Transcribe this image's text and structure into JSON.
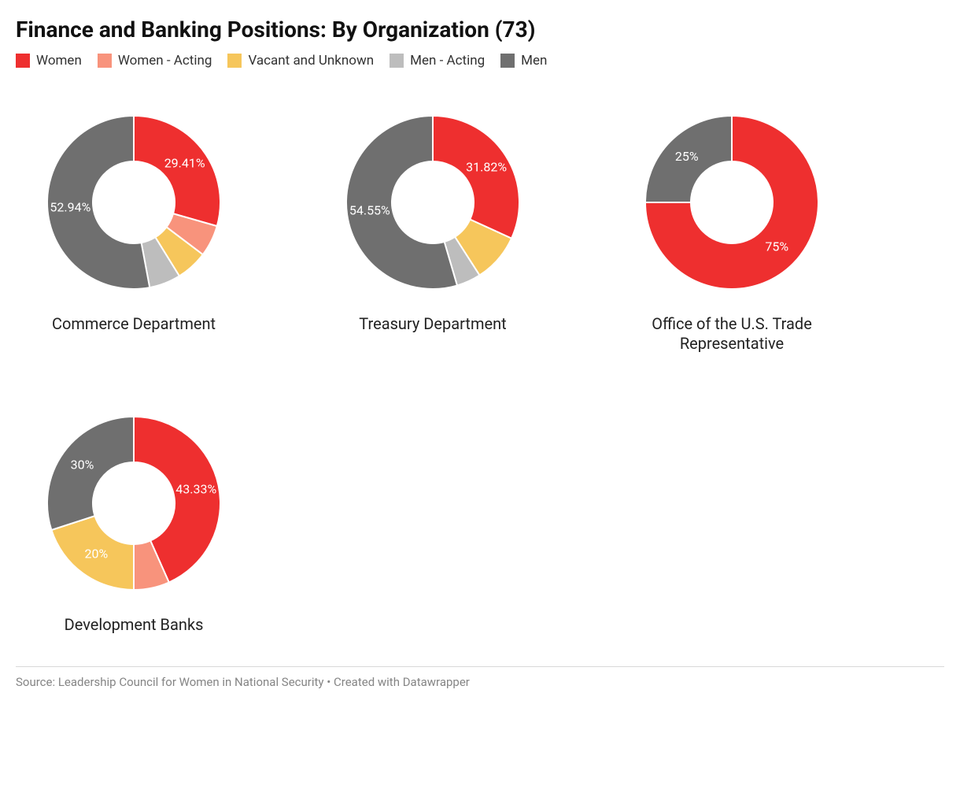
{
  "title": "Finance and Banking Positions: By Organization (73)",
  "legend": [
    {
      "label": "Women",
      "color": "#ee2f2f"
    },
    {
      "label": "Women - Acting",
      "color": "#f8937c"
    },
    {
      "label": "Vacant and Unknown",
      "color": "#f6c65b"
    },
    {
      "label": "Men - Acting",
      "color": "#bdbdbd"
    },
    {
      "label": "Men",
      "color": "#6f6f6f"
    }
  ],
  "donut": {
    "outer_radius": 110,
    "inner_radius": 52,
    "svg_size": 260,
    "label_font_size": 16,
    "title_font_size": 20
  },
  "charts": [
    {
      "title": "Commerce Department",
      "slices": [
        {
          "category": "Women",
          "value": 29.41,
          "color": "#ee2f2f",
          "label": "29.41%",
          "label_color": "#ffffff",
          "show_label": true
        },
        {
          "category": "Women - Acting",
          "value": 5.88,
          "color": "#f8937c",
          "label": "",
          "label_color": "#ffffff",
          "show_label": false
        },
        {
          "category": "Vacant and Unknown",
          "value": 5.88,
          "color": "#f6c65b",
          "label": "",
          "label_color": "#ffffff",
          "show_label": false
        },
        {
          "category": "Men - Acting",
          "value": 5.88,
          "color": "#bdbdbd",
          "label": "",
          "label_color": "#ffffff",
          "show_label": false
        },
        {
          "category": "Men",
          "value": 52.94,
          "color": "#6f6f6f",
          "label": "52.94%",
          "label_color": "#ffffff",
          "show_label": true
        }
      ]
    },
    {
      "title": "Treasury Department",
      "slices": [
        {
          "category": "Women",
          "value": 31.82,
          "color": "#ee2f2f",
          "label": "31.82%",
          "label_color": "#ffffff",
          "show_label": true
        },
        {
          "category": "Vacant and Unknown",
          "value": 9.09,
          "color": "#f6c65b",
          "label": "",
          "label_color": "#ffffff",
          "show_label": false
        },
        {
          "category": "Men - Acting",
          "value": 4.55,
          "color": "#bdbdbd",
          "label": "",
          "label_color": "#ffffff",
          "show_label": false
        },
        {
          "category": "Men",
          "value": 54.55,
          "color": "#6f6f6f",
          "label": "54.55%",
          "label_color": "#ffffff",
          "show_label": true
        }
      ]
    },
    {
      "title": "Office of the U.S. Trade Representative",
      "slices": [
        {
          "category": "Women",
          "value": 75,
          "color": "#ee2f2f",
          "label": "75%",
          "label_color": "#ffffff",
          "show_label": true
        },
        {
          "category": "Men",
          "value": 25,
          "color": "#6f6f6f",
          "label": "25%",
          "label_color": "#ffffff",
          "show_label": true
        }
      ]
    },
    {
      "title": "Development Banks",
      "slices": [
        {
          "category": "Women",
          "value": 43.33,
          "color": "#ee2f2f",
          "label": "43.33%",
          "label_color": "#ffffff",
          "show_label": true
        },
        {
          "category": "Women - Acting",
          "value": 6.67,
          "color": "#f8937c",
          "label": "",
          "label_color": "#ffffff",
          "show_label": false
        },
        {
          "category": "Vacant and Unknown",
          "value": 20,
          "color": "#f6c65b",
          "label": "20%",
          "label_color": "#ffffff",
          "show_label": true
        },
        {
          "category": "Men",
          "value": 30,
          "color": "#6f6f6f",
          "label": "30%",
          "label_color": "#ffffff",
          "show_label": true
        }
      ]
    }
  ],
  "source": "Source: Leadership Council for Women in National Security • Created with Datawrapper"
}
